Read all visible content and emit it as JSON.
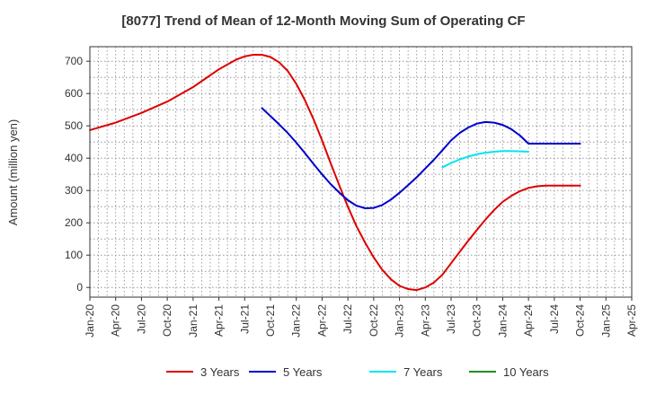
{
  "chart_data": {
    "type": "line",
    "title": "[8077]  Trend of Mean of 12-Month Moving Sum of Operating CF",
    "xlabel": "",
    "ylabel": "Amount (million yen)",
    "grid": true,
    "legend_position": "bottom",
    "x_ticks": [
      "Jan-20",
      "Apr-20",
      "Jul-20",
      "Oct-20",
      "Jan-21",
      "Apr-21",
      "Jul-21",
      "Oct-21",
      "Jan-22",
      "Apr-22",
      "Jul-22",
      "Oct-22",
      "Jan-23",
      "Apr-23",
      "Jul-23",
      "Oct-23",
      "Jan-24",
      "Apr-24",
      "Jul-24",
      "Oct-24",
      "Jan-25",
      "Apr-25"
    ],
    "y_ticks": [
      0,
      100,
      200,
      300,
      400,
      500,
      600,
      700
    ],
    "ylim": [
      -30,
      745
    ],
    "xlim_quarters": [
      0,
      21
    ],
    "series": [
      {
        "name": "3 Years",
        "color": "#dd0000",
        "x": [
          0,
          1,
          2,
          3,
          4,
          5,
          5.67,
          6,
          6.33,
          6.67,
          7,
          7.33,
          7.67,
          8,
          8.33,
          8.67,
          9,
          9.33,
          9.67,
          10,
          10.33,
          10.67,
          11,
          11.33,
          11.67,
          12,
          12.33,
          12.67,
          13,
          13.33,
          13.67,
          14,
          14.33,
          14.67,
          15,
          15.33,
          15.67,
          16,
          16.33,
          16.67,
          17,
          17.33,
          17.67,
          18,
          18.33,
          18.67,
          19
        ],
        "values": [
          487,
          510,
          540,
          575,
          620,
          675,
          705,
          715,
          720,
          720,
          713,
          697,
          670,
          630,
          580,
          520,
          455,
          385,
          315,
          250,
          190,
          138,
          93,
          55,
          25,
          5,
          -5,
          -8,
          0,
          15,
          40,
          75,
          110,
          145,
          178,
          210,
          240,
          265,
          283,
          298,
          308,
          313,
          315,
          315,
          315,
          315,
          315
        ]
      },
      {
        "name": "5 Years",
        "color": "#0000cc",
        "x": [
          6.67,
          7,
          7.33,
          7.67,
          8,
          8.33,
          8.67,
          9,
          9.33,
          9.67,
          10,
          10.33,
          10.67,
          11,
          11.33,
          11.67,
          12,
          12.33,
          12.67,
          13,
          13.33,
          13.67,
          14,
          14.33,
          14.67,
          15,
          15.33,
          15.67,
          16,
          16.33,
          16.67,
          17,
          17.33,
          17.67,
          18,
          18.33,
          18.67,
          19
        ],
        "values": [
          555,
          530,
          505,
          478,
          448,
          416,
          382,
          350,
          320,
          293,
          270,
          253,
          245,
          246,
          255,
          272,
          293,
          316,
          341,
          368,
          395,
          425,
          455,
          478,
          495,
          507,
          512,
          510,
          503,
          490,
          470,
          445,
          445,
          445,
          445,
          445,
          445,
          445
        ]
      },
      {
        "name": "7 Years",
        "color": "#00e5ee",
        "x": [
          13.67,
          14,
          14.33,
          14.67,
          15,
          15.33,
          15.67,
          16,
          16.33,
          16.67,
          17
        ],
        "values": [
          372,
          385,
          396,
          405,
          412,
          417,
          420,
          422,
          422,
          421,
          420
        ]
      },
      {
        "name": "10 Years",
        "color": "#228b22",
        "x": [],
        "values": []
      }
    ]
  }
}
